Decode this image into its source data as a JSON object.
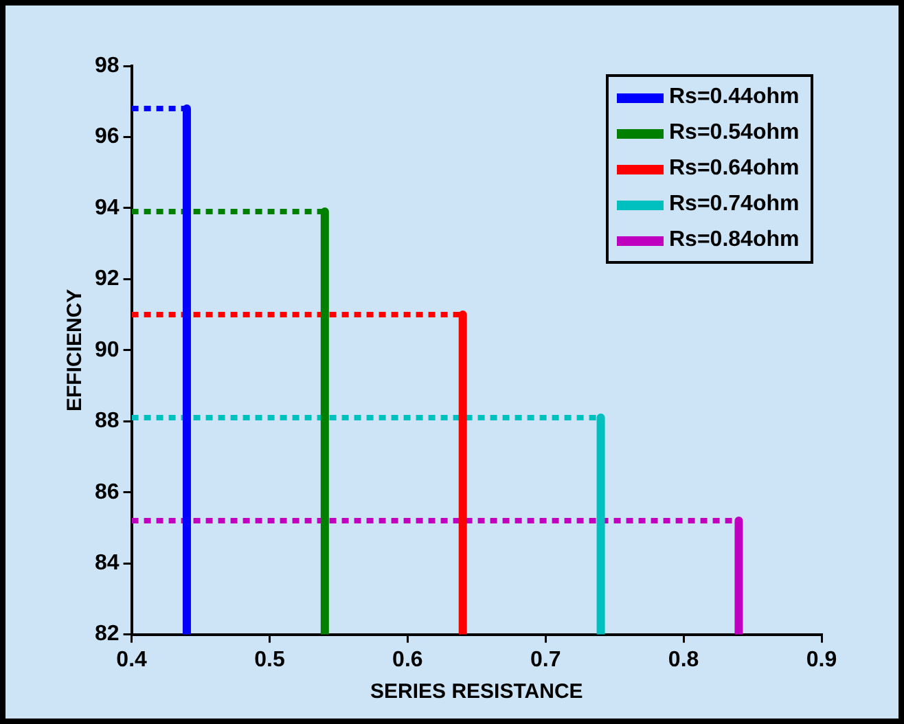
{
  "chart_data": {
    "type": "line",
    "xlabel": "SERIES RESISTANCE",
    "ylabel": "EFFICIENCY",
    "xlim": [
      0.4,
      0.9
    ],
    "xticks": [
      0.4,
      0.5,
      0.6,
      0.7,
      0.8,
      0.9
    ],
    "ylim": [
      82,
      98
    ],
    "yticks": [
      82,
      84,
      86,
      88,
      90,
      92,
      94,
      96,
      98
    ],
    "grid": false,
    "legend": "top right",
    "marker": "none",
    "series": [
      {
        "name": "Rs=0.44ohm",
        "color": "#0000ff",
        "line_style": "dotted",
        "x": [
          0.4,
          0.44
        ],
        "values": [
          96.8,
          96.8
        ]
      },
      {
        "name": "Rs=0.54ohm",
        "color": "#007f00",
        "line_style": "dotted",
        "x": [
          0.4,
          0.54
        ],
        "values": [
          93.9,
          93.9
        ]
      },
      {
        "name": "Rs=0.64ohm",
        "color": "#ff0000",
        "line_style": "dotted",
        "x": [
          0.4,
          0.64
        ],
        "values": [
          91.0,
          91.0
        ]
      },
      {
        "name": "Rs=0.74ohm",
        "color": "#00bfbf",
        "line_style": "dotted",
        "x": [
          0.4,
          0.74
        ],
        "values": [
          88.1,
          88.1
        ]
      },
      {
        "name": "Rs=0.84ohm",
        "color": "#bf00bf",
        "line_style": "dotted",
        "x": [
          0.4,
          0.84
        ],
        "values": [
          85.2,
          85.2
        ]
      },
      {
        "color": "#0000ff",
        "line_style": "solid",
        "x": [
          0.44,
          0.44
        ],
        "values": [
          96.8,
          82
        ]
      },
      {
        "color": "#007f00",
        "line_style": "solid",
        "x": [
          0.54,
          0.54
        ],
        "values": [
          93.9,
          82
        ]
      },
      {
        "color": "#ff0000",
        "line_style": "solid",
        "x": [
          0.64,
          0.64
        ],
        "values": [
          91.0,
          82
        ]
      },
      {
        "color": "#00bfbf",
        "line_style": "solid",
        "x": [
          0.74,
          0.74
        ],
        "values": [
          88.1,
          82
        ]
      },
      {
        "color": "#bf00bf",
        "line_style": "solid",
        "x": [
          0.84,
          0.84
        ],
        "values": [
          85.2,
          82
        ]
      }
    ]
  }
}
